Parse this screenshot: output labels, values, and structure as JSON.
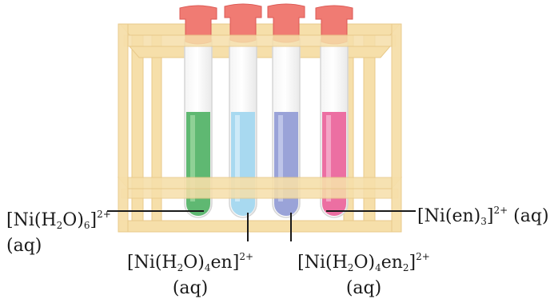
{
  "colors": {
    "rack": "#f6dfaa",
    "rack_edge": "#e8c98a",
    "stopper": "#f07b73",
    "stopper_dark": "#dc5a55",
    "glass": "#ffffff",
    "glass_edge": "#d6d6d6",
    "leader_line": "#1a1a1a"
  },
  "tubes": [
    {
      "id": "tube-1",
      "solution_color": "#5fb872",
      "solution_highlight": "#9bd79f"
    },
    {
      "id": "tube-2",
      "solution_color": "#a8d9f0",
      "solution_highlight": "#d6eefa"
    },
    {
      "id": "tube-3",
      "solution_color": "#9aa3d8",
      "solution_highlight": "#c7cdee"
    },
    {
      "id": "tube-4",
      "solution_color": "#ec6fa2",
      "solution_highlight": "#f6b3cf"
    }
  ],
  "labels": {
    "l1": {
      "pre": "[Ni(H",
      "s1": "2",
      "mid": "O)",
      "s2": "6",
      "post": "]",
      "sup": "2+",
      "line2": "(aq)"
    },
    "l2": {
      "pre": "[Ni(H",
      "s1": "2",
      "mid": "O)",
      "s2": "4",
      "post": "en]",
      "sup": "2+",
      "line2": "(aq)"
    },
    "l3": {
      "pre": "[Ni(H",
      "s1": "2",
      "mid": "O)",
      "s2": "4",
      "mid2": "en",
      "s3": "2",
      "post": "]",
      "sup": "2+",
      "line2": "(aq)"
    },
    "l4": {
      "pre": "[Ni(en)",
      "s1": "3",
      "post": "]",
      "sup": "2+",
      "tail": " (aq)"
    }
  }
}
